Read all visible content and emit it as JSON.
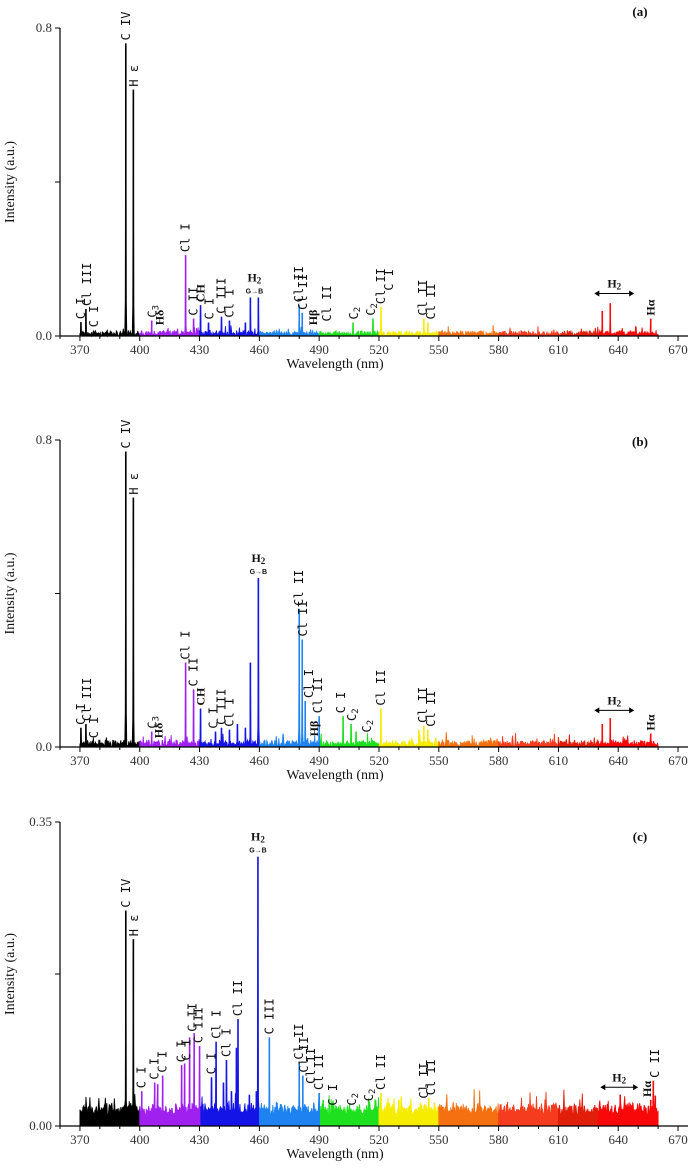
{
  "chart_data": [
    {
      "type": "line",
      "panel": "(a)",
      "xlabel": "Wavelength (nm)",
      "ylabel": "Intensity (a.u.)",
      "xlim": [
        360,
        675
      ],
      "ylim": [
        0,
        0.8
      ],
      "xticks": [
        370,
        400,
        430,
        460,
        490,
        520,
        550,
        580,
        610,
        640,
        670
      ],
      "yticks": [
        {
          "value": 0.0,
          "label": "0.0"
        },
        {
          "value": 0.4,
          "label": ""
        },
        {
          "value": 0.8,
          "label": "0.8"
        }
      ],
      "grid": false,
      "spectrum_range": [
        370,
        660
      ],
      "noise_level": 0.012,
      "color_bands": [
        {
          "from": 370,
          "to": 400,
          "color": "#000000"
        },
        {
          "from": 400,
          "to": 430,
          "color": "#a020f0"
        },
        {
          "from": 430,
          "to": 460,
          "color": "#1414e6"
        },
        {
          "from": 460,
          "to": 490,
          "color": "#1e82f0"
        },
        {
          "from": 490,
          "to": 520,
          "color": "#1ee01e"
        },
        {
          "from": 520,
          "to": 550,
          "color": "#f5ec00"
        },
        {
          "from": 550,
          "to": 580,
          "color": "#f57010"
        },
        {
          "from": 580,
          "to": 610,
          "color": "#f53c1e"
        },
        {
          "from": 610,
          "to": 630,
          "color": "#e01e0a"
        },
        {
          "from": 630,
          "to": 660,
          "color": "#f80808"
        }
      ],
      "peaks": [
        {
          "x": 370.5,
          "y": 0.036
        },
        {
          "x": 373.0,
          "y": 0.07
        },
        {
          "x": 393.0,
          "y": 0.76
        },
        {
          "x": 396.8,
          "y": 0.64
        },
        {
          "x": 406.0,
          "y": 0.04
        },
        {
          "x": 423.0,
          "y": 0.21
        },
        {
          "x": 427.0,
          "y": 0.045
        },
        {
          "x": 430.5,
          "y": 0.08
        },
        {
          "x": 434.5,
          "y": 0.035
        },
        {
          "x": 441.0,
          "y": 0.05
        },
        {
          "x": 445.0,
          "y": 0.04
        },
        {
          "x": 453.0,
          "y": 0.035
        },
        {
          "x": 455.5,
          "y": 0.1
        },
        {
          "x": 459.5,
          "y": 0.1
        },
        {
          "x": 480.0,
          "y": 0.08
        },
        {
          "x": 481.5,
          "y": 0.06
        },
        {
          "x": 507.0,
          "y": 0.035
        },
        {
          "x": 517.0,
          "y": 0.045
        },
        {
          "x": 521.0,
          "y": 0.075
        },
        {
          "x": 542.5,
          "y": 0.045
        },
        {
          "x": 544.5,
          "y": 0.035
        },
        {
          "x": 632.0,
          "y": 0.065
        },
        {
          "x": 636.0,
          "y": 0.085
        },
        {
          "x": 656.3,
          "y": 0.045
        }
      ],
      "annotations": [
        {
          "x": 370.5,
          "y": 0.036,
          "text": "C I"
        },
        {
          "x": 373.5,
          "y": 0.07,
          "text": "Cl III"
        },
        {
          "x": 377.0,
          "y": 0.015,
          "text": "C I"
        },
        {
          "x": 393.0,
          "y": 0.76,
          "text": "C IV"
        },
        {
          "x": 397.0,
          "y": 0.64,
          "text": "H ε"
        },
        {
          "x": 406.5,
          "y": 0.04,
          "text": "C3"
        },
        {
          "x": 410.0,
          "y": 0.02,
          "text": "Hδ",
          "style": "serif"
        },
        {
          "x": 423.0,
          "y": 0.21,
          "text": "Cl I"
        },
        {
          "x": 427.0,
          "y": 0.045,
          "text": "C II"
        },
        {
          "x": 430.5,
          "y": 0.08,
          "text": "CH",
          "style": "serif"
        },
        {
          "x": 435.0,
          "y": 0.035,
          "text": "C I"
        },
        {
          "x": 441.0,
          "y": 0.05,
          "text": "C III"
        },
        {
          "x": 445.0,
          "y": 0.04,
          "text": "Cl I"
        },
        {
          "x": 457.5,
          "y": 0.1,
          "text": "H2",
          "style": "h2-gb"
        },
        {
          "x": 480.0,
          "y": 0.08,
          "text": "Cl II"
        },
        {
          "x": 482.0,
          "y": 0.06,
          "text": "Cl II"
        },
        {
          "x": 487.0,
          "y": 0.02,
          "text": "Hβ",
          "style": "serif"
        },
        {
          "x": 494.0,
          "y": 0.03,
          "text": "Cl II"
        },
        {
          "x": 507.5,
          "y": 0.035,
          "text": "C2"
        },
        {
          "x": 516.0,
          "y": 0.045,
          "text": "C2"
        },
        {
          "x": 521.0,
          "y": 0.075,
          "text": "Cl II"
        },
        {
          "x": 525.0,
          "y": 0.11,
          "text": "C I"
        },
        {
          "x": 542.0,
          "y": 0.045,
          "text": "Cl II"
        },
        {
          "x": 546.0,
          "y": 0.035,
          "text": "Cl II"
        },
        {
          "x": 640.0,
          "y": 0.1,
          "text": "H2",
          "style": "h2-range",
          "from": 628,
          "to": 648
        },
        {
          "x": 656.3,
          "y": 0.045,
          "text": "Hα",
          "style": "serif"
        }
      ]
    },
    {
      "type": "line",
      "panel": "(b)",
      "xlabel": "Wavelength (nm)",
      "ylabel": "Intensity (a.u.)",
      "xlim": [
        360,
        675
      ],
      "ylim": [
        0,
        0.8
      ],
      "xticks": [
        370,
        400,
        430,
        460,
        490,
        520,
        550,
        580,
        610,
        640,
        670
      ],
      "yticks": [
        {
          "value": 0.0,
          "label": "0.0"
        },
        {
          "value": 0.4,
          "label": ""
        },
        {
          "value": 0.8,
          "label": "0.8"
        }
      ],
      "grid": false,
      "spectrum_range": [
        370,
        660
      ],
      "noise_level": 0.016,
      "color_bands": [
        {
          "from": 370,
          "to": 400,
          "color": "#000000"
        },
        {
          "from": 400,
          "to": 430,
          "color": "#a020f0"
        },
        {
          "from": 430,
          "to": 460,
          "color": "#1414e6"
        },
        {
          "from": 460,
          "to": 490,
          "color": "#1e82f0"
        },
        {
          "from": 490,
          "to": 520,
          "color": "#1ee01e"
        },
        {
          "from": 520,
          "to": 550,
          "color": "#f5ec00"
        },
        {
          "from": 550,
          "to": 580,
          "color": "#f57010"
        },
        {
          "from": 580,
          "to": 610,
          "color": "#f53c1e"
        },
        {
          "from": 610,
          "to": 630,
          "color": "#e01e0a"
        },
        {
          "from": 630,
          "to": 660,
          "color": "#f80808"
        }
      ],
      "peaks": [
        {
          "x": 370.5,
          "y": 0.05
        },
        {
          "x": 373.0,
          "y": 0.06
        },
        {
          "x": 393.0,
          "y": 0.77
        },
        {
          "x": 396.8,
          "y": 0.65
        },
        {
          "x": 406.0,
          "y": 0.04
        },
        {
          "x": 423.0,
          "y": 0.22
        },
        {
          "x": 427.0,
          "y": 0.15
        },
        {
          "x": 430.5,
          "y": 0.1
        },
        {
          "x": 438.0,
          "y": 0.04
        },
        {
          "x": 441.0,
          "y": 0.05
        },
        {
          "x": 445.0,
          "y": 0.045
        },
        {
          "x": 449.0,
          "y": 0.06
        },
        {
          "x": 453.0,
          "y": 0.05
        },
        {
          "x": 455.5,
          "y": 0.22
        },
        {
          "x": 459.5,
          "y": 0.44
        },
        {
          "x": 480.0,
          "y": 0.36
        },
        {
          "x": 481.5,
          "y": 0.28
        },
        {
          "x": 483.0,
          "y": 0.12
        },
        {
          "x": 490.0,
          "y": 0.08
        },
        {
          "x": 502.0,
          "y": 0.08
        },
        {
          "x": 506.0,
          "y": 0.06
        },
        {
          "x": 508.5,
          "y": 0.04
        },
        {
          "x": 521.0,
          "y": 0.1
        },
        {
          "x": 540.0,
          "y": 0.045
        },
        {
          "x": 542.5,
          "y": 0.055
        },
        {
          "x": 544.5,
          "y": 0.045
        },
        {
          "x": 632.0,
          "y": 0.06
        },
        {
          "x": 636.0,
          "y": 0.075
        },
        {
          "x": 656.3,
          "y": 0.035
        }
      ],
      "annotations": [
        {
          "x": 370.5,
          "y": 0.05,
          "text": "C I"
        },
        {
          "x": 373.5,
          "y": 0.06,
          "text": "Cl III"
        },
        {
          "x": 377.0,
          "y": 0.015,
          "text": "C I"
        },
        {
          "x": 393.0,
          "y": 0.77,
          "text": "C IV"
        },
        {
          "x": 397.0,
          "y": 0.65,
          "text": "H ε"
        },
        {
          "x": 406.5,
          "y": 0.04,
          "text": "C3"
        },
        {
          "x": 409.5,
          "y": 0.015,
          "text": "Hδ",
          "style": "serif"
        },
        {
          "x": 423.0,
          "y": 0.22,
          "text": "Cl I"
        },
        {
          "x": 427.0,
          "y": 0.15,
          "text": "C II"
        },
        {
          "x": 430.5,
          "y": 0.1,
          "text": "CH",
          "style": "serif"
        },
        {
          "x": 437.0,
          "y": 0.04,
          "text": "C I"
        },
        {
          "x": 441.0,
          "y": 0.05,
          "text": "C III"
        },
        {
          "x": 445.0,
          "y": 0.045,
          "text": "Cl I"
        },
        {
          "x": 459.5,
          "y": 0.44,
          "text": "H2",
          "style": "h2-gb"
        },
        {
          "x": 480.0,
          "y": 0.36,
          "text": "Cl II"
        },
        {
          "x": 482.0,
          "y": 0.28,
          "text": "Cl II"
        },
        {
          "x": 485.0,
          "y": 0.12,
          "text": "Cl I"
        },
        {
          "x": 487.5,
          "y": 0.02,
          "text": "Hβ",
          "style": "serif"
        },
        {
          "x": 489.5,
          "y": 0.08,
          "text": "Cl II"
        },
        {
          "x": 501.0,
          "y": 0.08,
          "text": "C I"
        },
        {
          "x": 506.5,
          "y": 0.06,
          "text": "C2"
        },
        {
          "x": 514.0,
          "y": 0.03,
          "text": "C2"
        },
        {
          "x": 521.0,
          "y": 0.1,
          "text": "Cl II"
        },
        {
          "x": 542.0,
          "y": 0.055,
          "text": "Cl II"
        },
        {
          "x": 546.0,
          "y": 0.045,
          "text": "Cl II"
        },
        {
          "x": 640.0,
          "y": 0.085,
          "text": "H2",
          "style": "h2-range",
          "from": 628,
          "to": 648
        },
        {
          "x": 656.3,
          "y": 0.035,
          "text": "Hα",
          "style": "serif"
        }
      ]
    },
    {
      "type": "line",
      "panel": "(c)",
      "xlabel": "Wavelength (nm)",
      "ylabel": "Intensity (a.u.)",
      "xlim": [
        360,
        675
      ],
      "ylim": [
        0,
        0.35
      ],
      "xticks": [
        370,
        400,
        430,
        460,
        490,
        520,
        550,
        580,
        610,
        640,
        670
      ],
      "yticks": [
        {
          "value": 0.0,
          "label": "0.00"
        },
        {
          "value": 0.175,
          "label": ""
        },
        {
          "value": 0.35,
          "label": "0.35"
        }
      ],
      "grid": false,
      "spectrum_range": [
        370,
        660
      ],
      "noise_level": 0.012,
      "noise_floor": 0.012,
      "color_bands": [
        {
          "from": 370,
          "to": 400,
          "color": "#000000"
        },
        {
          "from": 400,
          "to": 430,
          "color": "#a020f0"
        },
        {
          "from": 430,
          "to": 460,
          "color": "#1414e6"
        },
        {
          "from": 460,
          "to": 490,
          "color": "#1e82f0"
        },
        {
          "from": 490,
          "to": 520,
          "color": "#1ee01e"
        },
        {
          "from": 520,
          "to": 550,
          "color": "#f5ec00"
        },
        {
          "from": 550,
          "to": 580,
          "color": "#f57010"
        },
        {
          "from": 580,
          "to": 610,
          "color": "#f53c1e"
        },
        {
          "from": 610,
          "to": 630,
          "color": "#e01e0a"
        },
        {
          "from": 630,
          "to": 660,
          "color": "#f80808"
        }
      ],
      "peaks": [
        {
          "x": 393.0,
          "y": 0.248
        },
        {
          "x": 396.8,
          "y": 0.215
        },
        {
          "x": 401.0,
          "y": 0.04
        },
        {
          "x": 407.5,
          "y": 0.05
        },
        {
          "x": 409.0,
          "y": 0.048
        },
        {
          "x": 411.5,
          "y": 0.058
        },
        {
          "x": 421.0,
          "y": 0.07
        },
        {
          "x": 422.5,
          "y": 0.072
        },
        {
          "x": 425.0,
          "y": 0.102
        },
        {
          "x": 427.3,
          "y": 0.107
        },
        {
          "x": 430.0,
          "y": 0.092
        },
        {
          "x": 436.0,
          "y": 0.056
        },
        {
          "x": 438.3,
          "y": 0.097
        },
        {
          "x": 442.0,
          "y": 0.05
        },
        {
          "x": 443.5,
          "y": 0.076
        },
        {
          "x": 446.0,
          "y": 0.04
        },
        {
          "x": 448.5,
          "y": 0.09
        },
        {
          "x": 449.3,
          "y": 0.123
        },
        {
          "x": 455.0,
          "y": 0.036
        },
        {
          "x": 458.5,
          "y": 0.04
        },
        {
          "x": 459.3,
          "y": 0.31
        },
        {
          "x": 465.0,
          "y": 0.102
        },
        {
          "x": 480.0,
          "y": 0.073
        },
        {
          "x": 481.8,
          "y": 0.058
        },
        {
          "x": 490.0,
          "y": 0.038
        },
        {
          "x": 492.0,
          "y": 0.03
        },
        {
          "x": 521.0,
          "y": 0.038
        },
        {
          "x": 530.0,
          "y": 0.03
        },
        {
          "x": 543.0,
          "y": 0.025
        },
        {
          "x": 545.0,
          "y": 0.032
        },
        {
          "x": 631.0,
          "y": 0.022
        },
        {
          "x": 641.0,
          "y": 0.036
        },
        {
          "x": 656.3,
          "y": 0.03
        },
        {
          "x": 657.6,
          "y": 0.052
        },
        {
          "x": 658.6,
          "y": 0.035
        }
      ],
      "annotations": [
        {
          "x": 393.0,
          "y": 0.248,
          "text": "C IV"
        },
        {
          "x": 397.0,
          "y": 0.215,
          "text": "H ε"
        },
        {
          "x": 401.0,
          "y": 0.04,
          "text": "C I"
        },
        {
          "x": 407.5,
          "y": 0.05,
          "text": "C I"
        },
        {
          "x": 411.5,
          "y": 0.058,
          "text": "C I"
        },
        {
          "x": 421.0,
          "y": 0.07,
          "text": "C I"
        },
        {
          "x": 423.5,
          "y": 0.072,
          "text": "C I"
        },
        {
          "x": 426.5,
          "y": 0.105,
          "text": "C II"
        },
        {
          "x": 429.5,
          "y": 0.092,
          "text": "C III"
        },
        {
          "x": 436.0,
          "y": 0.056,
          "text": "C I"
        },
        {
          "x": 438.5,
          "y": 0.097,
          "text": "Cl I"
        },
        {
          "x": 443.5,
          "y": 0.076,
          "text": "Cl I"
        },
        {
          "x": 449.3,
          "y": 0.123,
          "text": "Cl II"
        },
        {
          "x": 459.3,
          "y": 0.31,
          "text": "H2",
          "style": "h2-gb"
        },
        {
          "x": 465.0,
          "y": 0.102,
          "text": "C III"
        },
        {
          "x": 480.0,
          "y": 0.073,
          "text": "Cl II"
        },
        {
          "x": 482.5,
          "y": 0.058,
          "text": "Cl II"
        },
        {
          "x": 486.0,
          "y": 0.045,
          "text": "Cl II"
        },
        {
          "x": 490.0,
          "y": 0.038,
          "text": "Cl II"
        },
        {
          "x": 497.0,
          "y": 0.02,
          "text": "C I"
        },
        {
          "x": 506.5,
          "y": 0.02,
          "text": "C2"
        },
        {
          "x": 515.0,
          "y": 0.025,
          "text": "C2"
        },
        {
          "x": 521.0,
          "y": 0.038,
          "text": "Cl II"
        },
        {
          "x": 542.5,
          "y": 0.028,
          "text": "Cl II"
        },
        {
          "x": 546.0,
          "y": 0.032,
          "text": "Cl II"
        },
        {
          "x": 640.0,
          "y": 0.04,
          "text": "H2",
          "style": "h2-range",
          "from": 631,
          "to": 650
        },
        {
          "x": 654.5,
          "y": 0.03,
          "text": "Hα",
          "style": "serif"
        },
        {
          "x": 658.5,
          "y": 0.052,
          "text": "C II"
        }
      ]
    }
  ],
  "labels": {
    "gb_transition": "G→B"
  }
}
